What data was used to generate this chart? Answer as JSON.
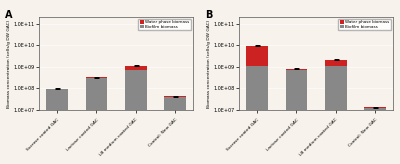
{
  "categories": [
    "Sucrose coated GAC",
    "Lactose coated GAC",
    "LB medium coated GAC",
    "Control: New GAC"
  ],
  "panel_A": {
    "biofilm": [
      95000000.0,
      320000000.0,
      720000000.0,
      42000000.0
    ],
    "water": [
      4000000.0,
      8000000.0,
      380000000.0,
      1500000.0
    ],
    "total_err": [
      4000000.0,
      15000000.0,
      60000000.0,
      2000000.0
    ]
  },
  "panel_B": {
    "biofilm": [
      1150000000.0,
      680000000.0,
      1050000000.0,
      12000000.0
    ],
    "water": [
      8500000000.0,
      150000000.0,
      1100000000.0,
      1500000.0
    ],
    "total_err": [
      200000000.0,
      40000000.0,
      60000000.0,
      800000.0
    ]
  },
  "ylim_A": [
    10000000.0,
    200000000000.0
  ],
  "ylim_B": [
    10000000.0,
    200000000000.0
  ],
  "ylabel": "Biomass concentration (cells/g DW GAC)",
  "biofilm_color": "#888888",
  "water_color": "#cc2222",
  "legend_labels": [
    "Water phase biomass",
    "Biofilm biomass"
  ],
  "bg_color": "#f7f2eb",
  "label_A": "A",
  "label_B": "B",
  "bar_width": 0.55
}
